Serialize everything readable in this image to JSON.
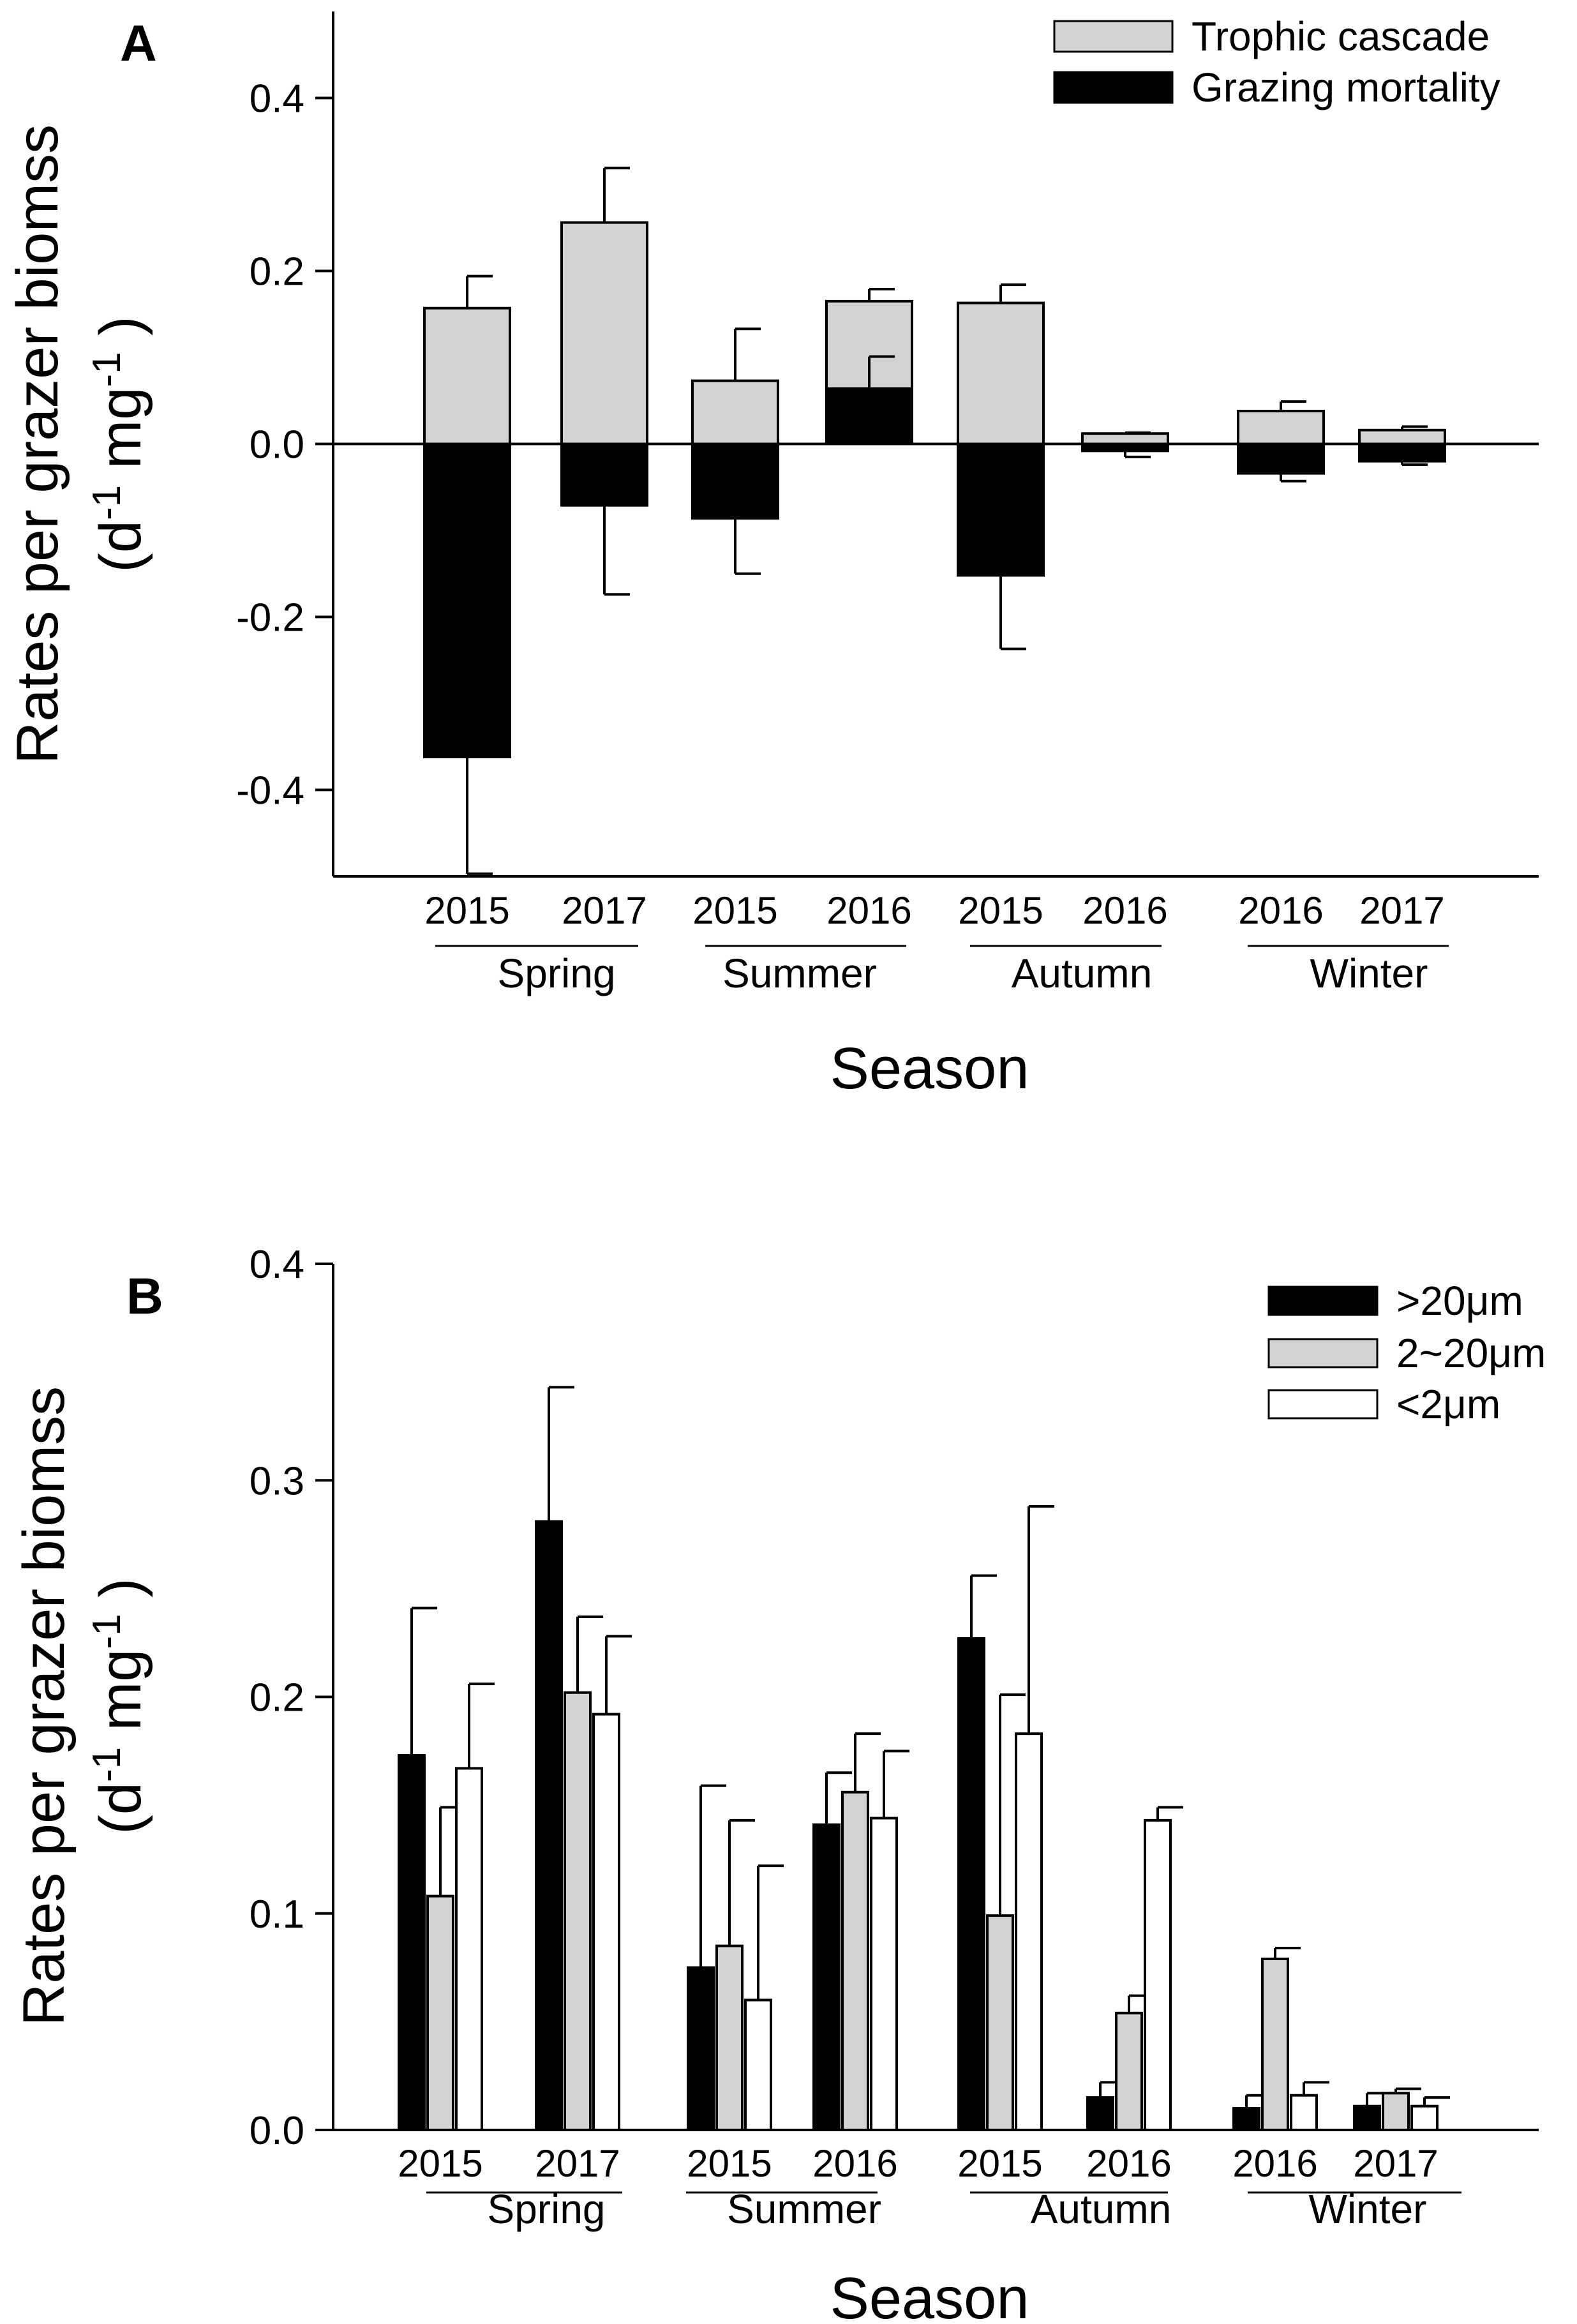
{
  "chart_data": [
    {
      "panel_label": "A",
      "type": "bar",
      "stacking": "diverging",
      "ylabel_line1": "Rates per grazer biomss",
      "ylabel_line2_base1": "(d",
      "ylabel_line2_sup1": "-1",
      "ylabel_line2_base2": " mg",
      "ylabel_line2_sup2": "-1",
      "ylabel_line2_end": " )",
      "xlabel": "Season",
      "ylim": [
        -0.5,
        0.5
      ],
      "y_ticks": [
        -0.4,
        -0.2,
        0.0,
        0.2,
        0.4
      ],
      "y_tick_labels": [
        "-0.4",
        "-0.2",
        "0.0",
        "0.2",
        "0.4"
      ],
      "zero_line": true,
      "legend_position": "top-right",
      "categories": [
        "2015",
        "2017",
        "2015",
        "2016",
        "2015",
        "2016",
        "2016",
        "2017"
      ],
      "season_groups": [
        {
          "label": "Spring",
          "start": 0,
          "end": 1
        },
        {
          "label": "Summer",
          "start": 2,
          "end": 3
        },
        {
          "label": "Autumn",
          "start": 4,
          "end": 5
        },
        {
          "label": "Winter",
          "start": 6,
          "end": 7
        }
      ],
      "series": [
        {
          "name": "Trophic cascade",
          "color": "#d3d3d3",
          "values": [
            0.157,
            0.256,
            0.073,
            0.165,
            0.163,
            0.012,
            0.038,
            0.016
          ],
          "errors": [
            0.037,
            0.063,
            0.06,
            0.014,
            0.021,
            0.001,
            0.011,
            0.004
          ]
        },
        {
          "name": "Grazing mortality",
          "color": "#000000",
          "values": [
            -0.362,
            -0.071,
            -0.086,
            0.064,
            -0.152,
            -0.008,
            -0.034,
            -0.02
          ],
          "errors": [
            0.135,
            0.103,
            0.064,
            0.037,
            0.085,
            0.007,
            0.009,
            0.004
          ]
        }
      ]
    },
    {
      "panel_label": "B",
      "type": "bar",
      "ylabel_line1": "Rates per grazer biomss",
      "ylabel_line2_base1": "(d",
      "ylabel_line2_sup1": "-1",
      "ylabel_line2_base2": " mg",
      "ylabel_line2_sup2": "-1",
      "ylabel_line2_end": " )",
      "xlabel": "Season",
      "ylim": [
        0,
        0.4
      ],
      "y_ticks": [
        0.0,
        0.1,
        0.2,
        0.3,
        0.4
      ],
      "y_tick_labels": [
        "0.0",
        "0.1",
        "0.2",
        "0.3",
        "0.4"
      ],
      "legend_position": "top-right",
      "categories": [
        "2015",
        "2017",
        "2015",
        "2016",
        "2015",
        "2016",
        "2016",
        "2017"
      ],
      "season_groups": [
        {
          "label": "Spring",
          "start": 0,
          "end": 1
        },
        {
          "label": "Summer",
          "start": 2,
          "end": 3
        },
        {
          "label": "Autumn",
          "start": 4,
          "end": 5
        },
        {
          "label": "Winter",
          "start": 6,
          "end": 7
        }
      ],
      "series": [
        {
          "name": ">20μm",
          "color": "#000000",
          "values": [
            0.173,
            0.281,
            0.075,
            0.141,
            0.227,
            0.015,
            0.01,
            0.011
          ],
          "errors": [
            0.068,
            0.062,
            0.084,
            0.024,
            0.029,
            0.007,
            0.006,
            0.006
          ]
        },
        {
          "name": "2~20μm",
          "color": "#d3d3d3",
          "values": [
            0.108,
            0.202,
            0.085,
            0.156,
            0.099,
            0.054,
            0.079,
            0.017
          ],
          "errors": [
            0.041,
            0.035,
            0.058,
            0.027,
            0.102,
            0.008,
            0.005,
            0.002
          ]
        },
        {
          "name": "<2μm",
          "color": "#ffffff",
          "values": [
            0.167,
            0.192,
            0.06,
            0.144,
            0.183,
            0.143,
            0.016,
            0.011
          ],
          "errors": [
            0.039,
            0.036,
            0.062,
            0.031,
            0.105,
            0.006,
            0.006,
            0.004
          ]
        }
      ]
    }
  ]
}
